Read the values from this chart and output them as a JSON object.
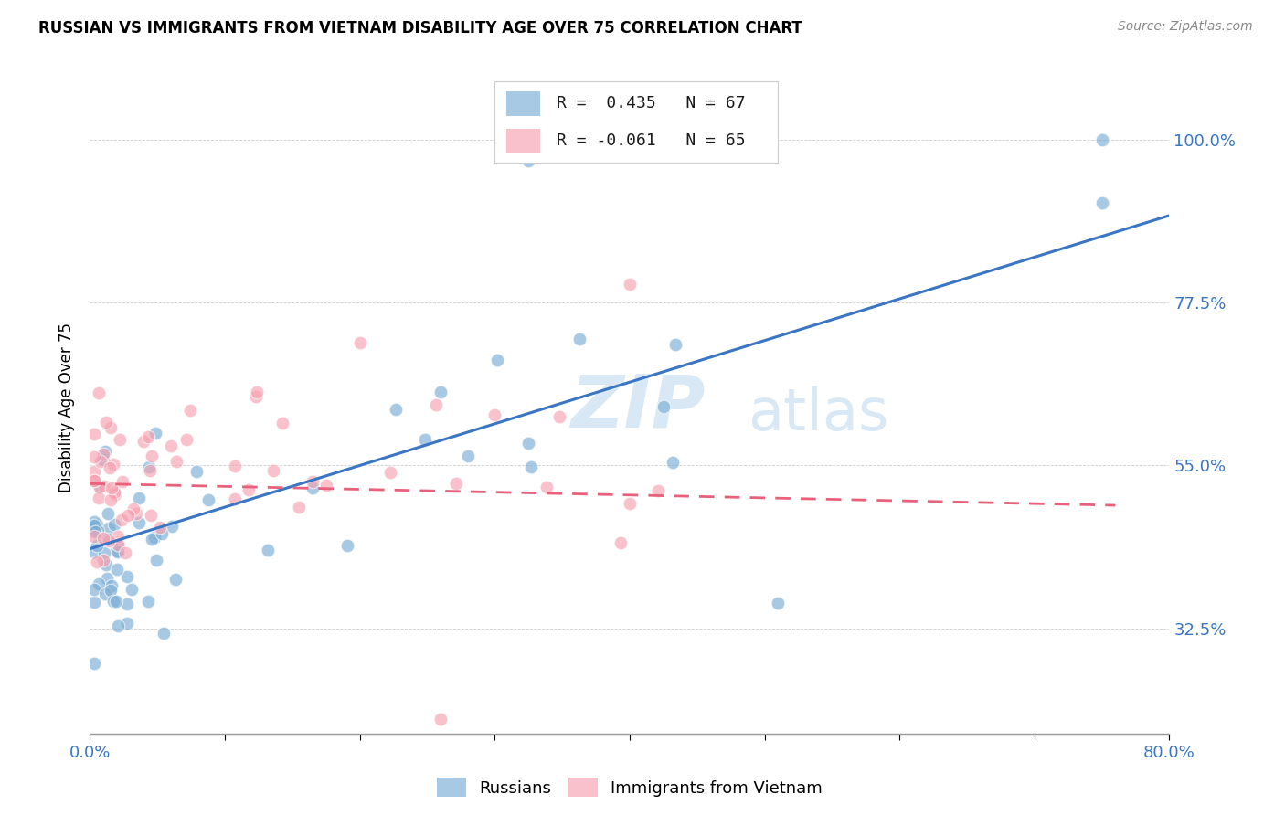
{
  "title": "RUSSIAN VS IMMIGRANTS FROM VIETNAM DISABILITY AGE OVER 75 CORRELATION CHART",
  "source": "Source: ZipAtlas.com",
  "ylabel": "Disability Age Over 75",
  "xmin": 0.0,
  "xmax": 0.8,
  "ymin": 0.18,
  "ymax": 1.08,
  "yticks": [
    0.325,
    0.55,
    0.775,
    1.0
  ],
  "ytick_labels": [
    "32.5%",
    "55.0%",
    "77.5%",
    "100.0%"
  ],
  "legend_R1": "0.435",
  "legend_N1": "67",
  "legend_R2": "-0.061",
  "legend_N2": "65",
  "blue_color": "#7aadd4",
  "pink_color": "#f5a0b0",
  "trend_blue": "#3a76c4",
  "trend_pink": "#e8607a",
  "watermark_zip": "ZIP",
  "watermark_atlas": "atlas",
  "blue_trend_x0": 0.0,
  "blue_trend_y0": 0.435,
  "blue_trend_x1": 0.8,
  "blue_trend_y1": 0.895,
  "pink_trend_x0": 0.0,
  "pink_trend_y0": 0.525,
  "pink_trend_x1": 0.76,
  "pink_trend_y1": 0.495
}
